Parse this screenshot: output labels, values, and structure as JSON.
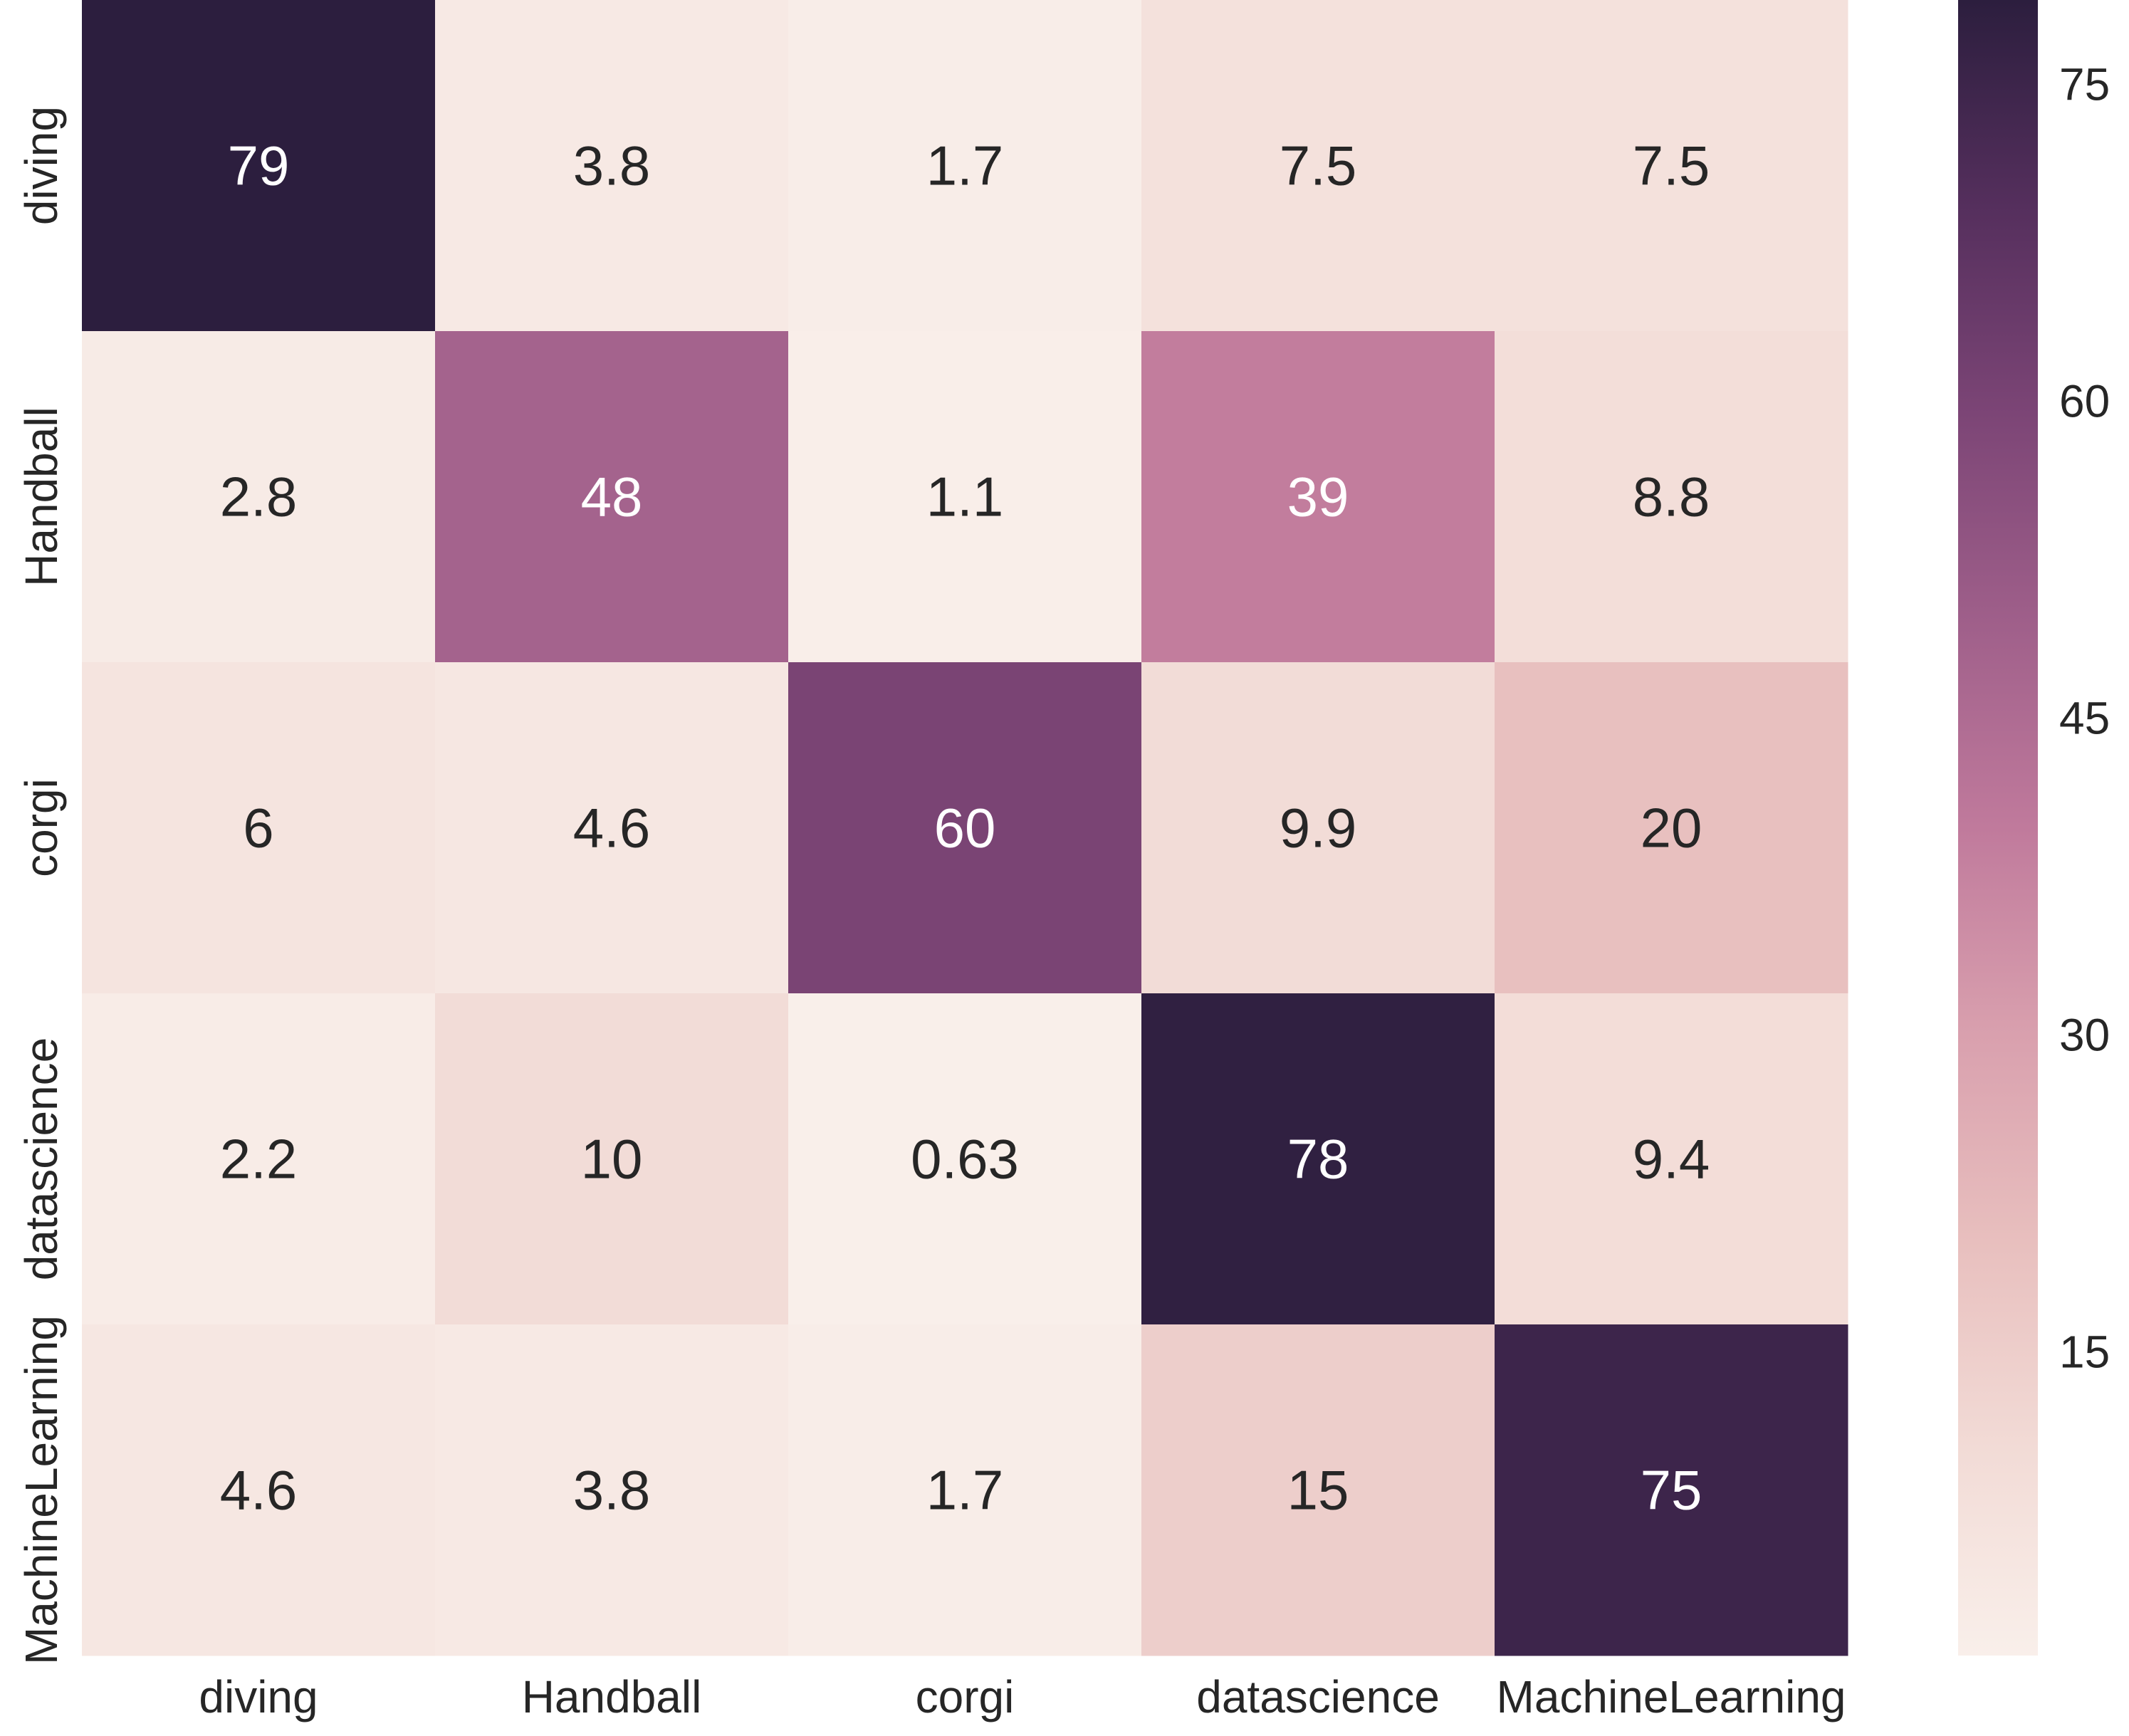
{
  "chart_data": {
    "type": "heatmap",
    "title": "",
    "xlabel": "",
    "ylabel": "",
    "x_categories": [
      "diving",
      "Handball",
      "corgi",
      "datascience",
      "MachineLearning"
    ],
    "y_categories": [
      "diving",
      "Handball",
      "corgi",
      "datascience",
      "MachineLearning"
    ],
    "values": [
      [
        79,
        3.8,
        1.7,
        7.5,
        7.5
      ],
      [
        2.8,
        48,
        1.1,
        39,
        8.8
      ],
      [
        6,
        4.6,
        60,
        9.9,
        20
      ],
      [
        2.2,
        10,
        0.63,
        78,
        9.4
      ],
      [
        4.6,
        3.8,
        1.7,
        15,
        75
      ]
    ],
    "annotations": [
      [
        "79",
        "3.8",
        "1.7",
        "7.5",
        "7.5"
      ],
      [
        "2.8",
        "48",
        "1.1",
        "39",
        "8.8"
      ],
      [
        "6",
        "4.6",
        "60",
        "9.9",
        "20"
      ],
      [
        "2.2",
        "10",
        "0.63",
        "78",
        "9.4"
      ],
      [
        "4.6",
        "3.8",
        "1.7",
        "15",
        "75"
      ]
    ],
    "colorbar": {
      "ticks": [
        15,
        30,
        45,
        60,
        75
      ],
      "tick_labels": [
        "15",
        "30",
        "45",
        "60",
        "75"
      ],
      "vmin": 0.63,
      "vmax": 79
    },
    "colormap": [
      "#f9efea",
      "#f2dbd6",
      "#e8bfbe",
      "#d9a0ae",
      "#c07a9c",
      "#9f5f8a",
      "#7c4576",
      "#552f5d",
      "#2c1e3e"
    ],
    "text_color_dark": "#262626",
    "text_color_light": "#ffffff",
    "grid": false,
    "legend": "none"
  }
}
